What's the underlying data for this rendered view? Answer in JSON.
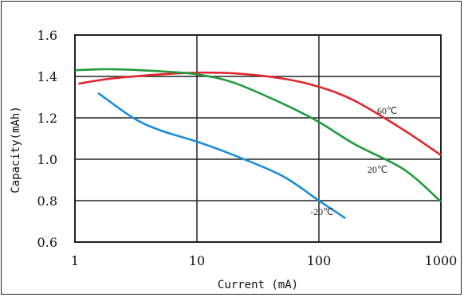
{
  "chart_data": {
    "type": "line",
    "xlabel": "Current (mA)",
    "ylabel": "Capacity(mAh)",
    "xscale": "log",
    "xlim": [
      1,
      1000
    ],
    "ylim": [
      0.6,
      1.6
    ],
    "xticks": [
      {
        "value": 1,
        "label": "1"
      },
      {
        "value": 10,
        "label": "10"
      },
      {
        "value": 100,
        "label": "100"
      },
      {
        "value": 1000,
        "label": "1000"
      }
    ],
    "yticks": [
      {
        "value": 0.6,
        "label": "0.6"
      },
      {
        "value": 0.8,
        "label": "0.8"
      },
      {
        "value": 1.0,
        "label": "1.0"
      },
      {
        "value": 1.2,
        "label": "1.2"
      },
      {
        "value": 1.4,
        "label": "1.4"
      },
      {
        "value": 1.6,
        "label": "1.6"
      }
    ],
    "grid": true,
    "series": [
      {
        "name": "60℃",
        "color": "#e0282e",
        "points": [
          [
            1.07,
            1.365
          ],
          [
            2,
            1.39
          ],
          [
            5,
            1.41
          ],
          [
            10,
            1.418
          ],
          [
            20,
            1.415
          ],
          [
            50,
            1.39
          ],
          [
            100,
            1.35
          ],
          [
            200,
            1.28
          ],
          [
            500,
            1.14
          ],
          [
            1000,
            1.02
          ]
        ]
      },
      {
        "name": "20℃",
        "color": "#1f9a3c",
        "points": [
          [
            1,
            1.43
          ],
          [
            2,
            1.435
          ],
          [
            5,
            1.425
          ],
          [
            10,
            1.41
          ],
          [
            20,
            1.37
          ],
          [
            50,
            1.27
          ],
          [
            100,
            1.18
          ],
          [
            200,
            1.07
          ],
          [
            500,
            0.95
          ],
          [
            1000,
            0.795
          ]
        ]
      },
      {
        "name": "-20℃",
        "color": "#1a8fd6",
        "points": [
          [
            1.55,
            1.32
          ],
          [
            3,
            1.2
          ],
          [
            5,
            1.14
          ],
          [
            10,
            1.085
          ],
          [
            20,
            1.02
          ],
          [
            50,
            0.92
          ],
          [
            100,
            0.8
          ],
          [
            165,
            0.715
          ]
        ]
      }
    ]
  }
}
